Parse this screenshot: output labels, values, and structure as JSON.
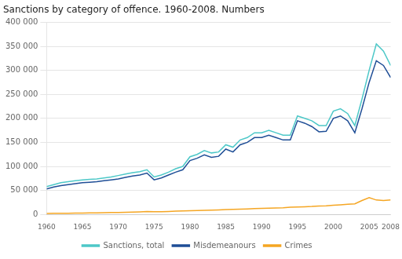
{
  "chart_data": {
    "type": "line",
    "title": "Sanctions by category of offence. 1960-2008. Numbers",
    "x": [
      1960,
      1961,
      1962,
      1963,
      1964,
      1965,
      1966,
      1967,
      1968,
      1969,
      1970,
      1971,
      1972,
      1973,
      1974,
      1975,
      1976,
      1977,
      1978,
      1979,
      1980,
      1981,
      1982,
      1983,
      1984,
      1985,
      1986,
      1987,
      1988,
      1989,
      1990,
      1991,
      1992,
      1993,
      1994,
      1995,
      1996,
      1997,
      1998,
      1999,
      2000,
      2001,
      2002,
      2003,
      2004,
      2005,
      2006,
      2007,
      2008
    ],
    "series": [
      {
        "name": "Sanctions, total",
        "color": "#4DC8C8",
        "values": [
          58000,
          62000,
          66000,
          68000,
          70000,
          72000,
          73000,
          74000,
          76000,
          78000,
          81000,
          84000,
          87000,
          89000,
          93000,
          78000,
          82000,
          88000,
          95000,
          100000,
          120000,
          125000,
          133000,
          128000,
          130000,
          145000,
          140000,
          155000,
          160000,
          170000,
          170000,
          175000,
          170000,
          165000,
          165000,
          205000,
          200000,
          195000,
          185000,
          185000,
          215000,
          220000,
          210000,
          185000,
          240000,
          300000,
          355000,
          340000,
          310000
        ]
      },
      {
        "name": "Misdemeanours",
        "color": "#1F4E96",
        "values": [
          53000,
          57000,
          60000,
          62000,
          64000,
          66000,
          67000,
          68000,
          70000,
          72000,
          74000,
          77000,
          80000,
          82000,
          86000,
          72000,
          76000,
          82000,
          88000,
          93000,
          112000,
          117000,
          124000,
          119000,
          121000,
          136000,
          130000,
          145000,
          150000,
          160000,
          160000,
          165000,
          160000,
          155000,
          155000,
          195000,
          190000,
          183000,
          172000,
          173000,
          200000,
          205000,
          195000,
          170000,
          220000,
          275000,
          320000,
          310000,
          285000
        ]
      },
      {
        "name": "Crimes",
        "color": "#F5A623",
        "values": [
          2000,
          2200,
          2400,
          2500,
          2700,
          2900,
          3100,
          3300,
          3600,
          3900,
          4200,
          4600,
          5000,
          5400,
          5900,
          5500,
          5800,
          6200,
          6700,
          7200,
          7800,
          8200,
          8700,
          9000,
          9500,
          10000,
          10500,
          11000,
          11500,
          12000,
          12500,
          13000,
          13500,
          14000,
          15000,
          15500,
          16000,
          16500,
          17500,
          18000,
          19000,
          20000,
          21000,
          22000,
          29000,
          35000,
          30000,
          29000,
          30000
        ]
      }
    ],
    "xlim": [
      1960,
      2008
    ],
    "xticks": [
      1960,
      1965,
      1970,
      1975,
      1980,
      1985,
      1990,
      1995,
      2000,
      2005,
      2008
    ],
    "ylim": [
      0,
      400000
    ],
    "yticks": [
      0,
      {
        "value": 50000,
        "label": "50 000"
      },
      {
        "value": 100000,
        "label": "100 000"
      },
      {
        "value": 150000,
        "label": "150 000"
      },
      {
        "value": 200000,
        "label": "200 000"
      },
      {
        "value": 250000,
        "label": "250 000"
      },
      {
        "value": 300000,
        "label": "300 000"
      },
      {
        "value": 350000,
        "label": "350 000"
      },
      {
        "value": 400000,
        "label": "400 000"
      }
    ],
    "grid": "y",
    "legend": "bottom"
  }
}
